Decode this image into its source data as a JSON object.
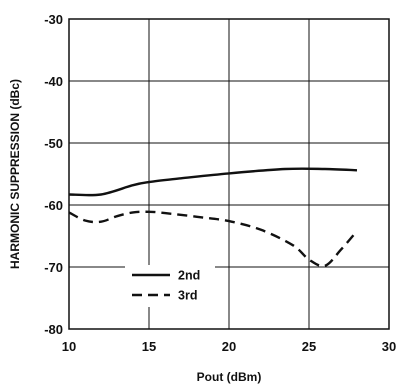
{
  "chart_data": {
    "type": "line",
    "title": "",
    "xlabel": "Pout (dBm)",
    "ylabel": "HARMONIC SUPPRESSION (dBc)",
    "xlim": [
      10,
      30
    ],
    "ylim": [
      -80,
      -30
    ],
    "xticks": [
      10,
      15,
      20,
      25,
      30
    ],
    "yticks": [
      -30,
      -40,
      -50,
      -60,
      -70,
      -80
    ],
    "xtick_labels": [
      "10",
      "15",
      "20",
      "25",
      "30"
    ],
    "ytick_labels": [
      "-30",
      "-40",
      "-50",
      "-60",
      "-70",
      "-80"
    ],
    "grid": true,
    "legend_position": "lower-left",
    "series": [
      {
        "name": "2nd",
        "style": "solid",
        "color": "#111111",
        "x": [
          10,
          12,
          14,
          15,
          17,
          20,
          23.5,
          26,
          28
        ],
        "y": [
          -58.3,
          -58.3,
          -56.8,
          -56.3,
          -55.7,
          -54.9,
          -54.2,
          -54.2,
          -54.4
        ]
      },
      {
        "name": "3rd",
        "style": "dashed",
        "color": "#111111",
        "x": [
          10,
          11,
          12,
          13,
          14,
          15,
          16,
          18,
          20,
          22,
          24,
          25,
          26,
          27,
          28
        ],
        "y": [
          -61.2,
          -62.5,
          -62.7,
          -61.8,
          -61.2,
          -61.1,
          -61.3,
          -61.9,
          -62.6,
          -64.0,
          -66.5,
          -68.8,
          -69.8,
          -67.2,
          -64.2
        ]
      }
    ]
  }
}
